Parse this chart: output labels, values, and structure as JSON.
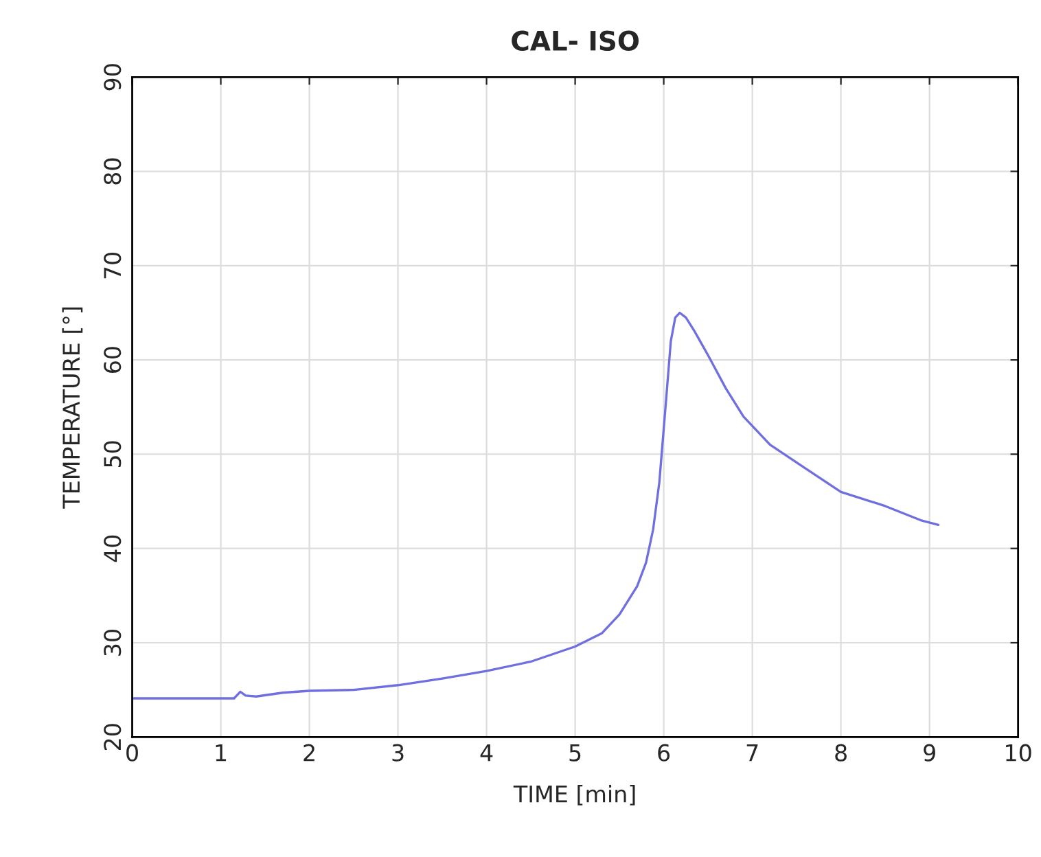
{
  "chart_data": {
    "type": "line",
    "title": "CAL- ISO",
    "xlabel": "TIME [min]",
    "ylabel": "TEMPERATURE [°]",
    "x": [
      0,
      0.5,
      1.0,
      1.15,
      1.22,
      1.28,
      1.4,
      1.7,
      2.0,
      2.5,
      3.0,
      3.5,
      4.0,
      4.5,
      5.0,
      5.3,
      5.5,
      5.7,
      5.8,
      5.88,
      5.95,
      6.02,
      6.08,
      6.13,
      6.18,
      6.25,
      6.35,
      6.5,
      6.7,
      6.9,
      7.2,
      7.6,
      8.0,
      8.5,
      8.9,
      9.1
    ],
    "series": [
      {
        "color": "#6f6fe0",
        "values": [
          24.1,
          24.1,
          24.1,
          24.1,
          24.8,
          24.4,
          24.3,
          24.7,
          24.9,
          25.0,
          25.5,
          26.2,
          27.0,
          28.0,
          29.6,
          31.0,
          33.0,
          36.0,
          38.5,
          42.0,
          47.0,
          55.0,
          62.0,
          64.5,
          65.0,
          64.5,
          63.0,
          60.5,
          57.0,
          54.0,
          51.0,
          48.5,
          46.0,
          44.5,
          43.0,
          42.5
        ]
      }
    ],
    "xlim": [
      0,
      10
    ],
    "xticks": [
      0,
      1,
      2,
      3,
      4,
      5,
      6,
      7,
      8,
      9,
      10
    ],
    "ylim": [
      20,
      90
    ],
    "yticks": [
      20,
      30,
      40,
      50,
      60,
      70,
      80,
      90
    ],
    "grid": true,
    "marker": "none",
    "line_style": "solid"
  }
}
